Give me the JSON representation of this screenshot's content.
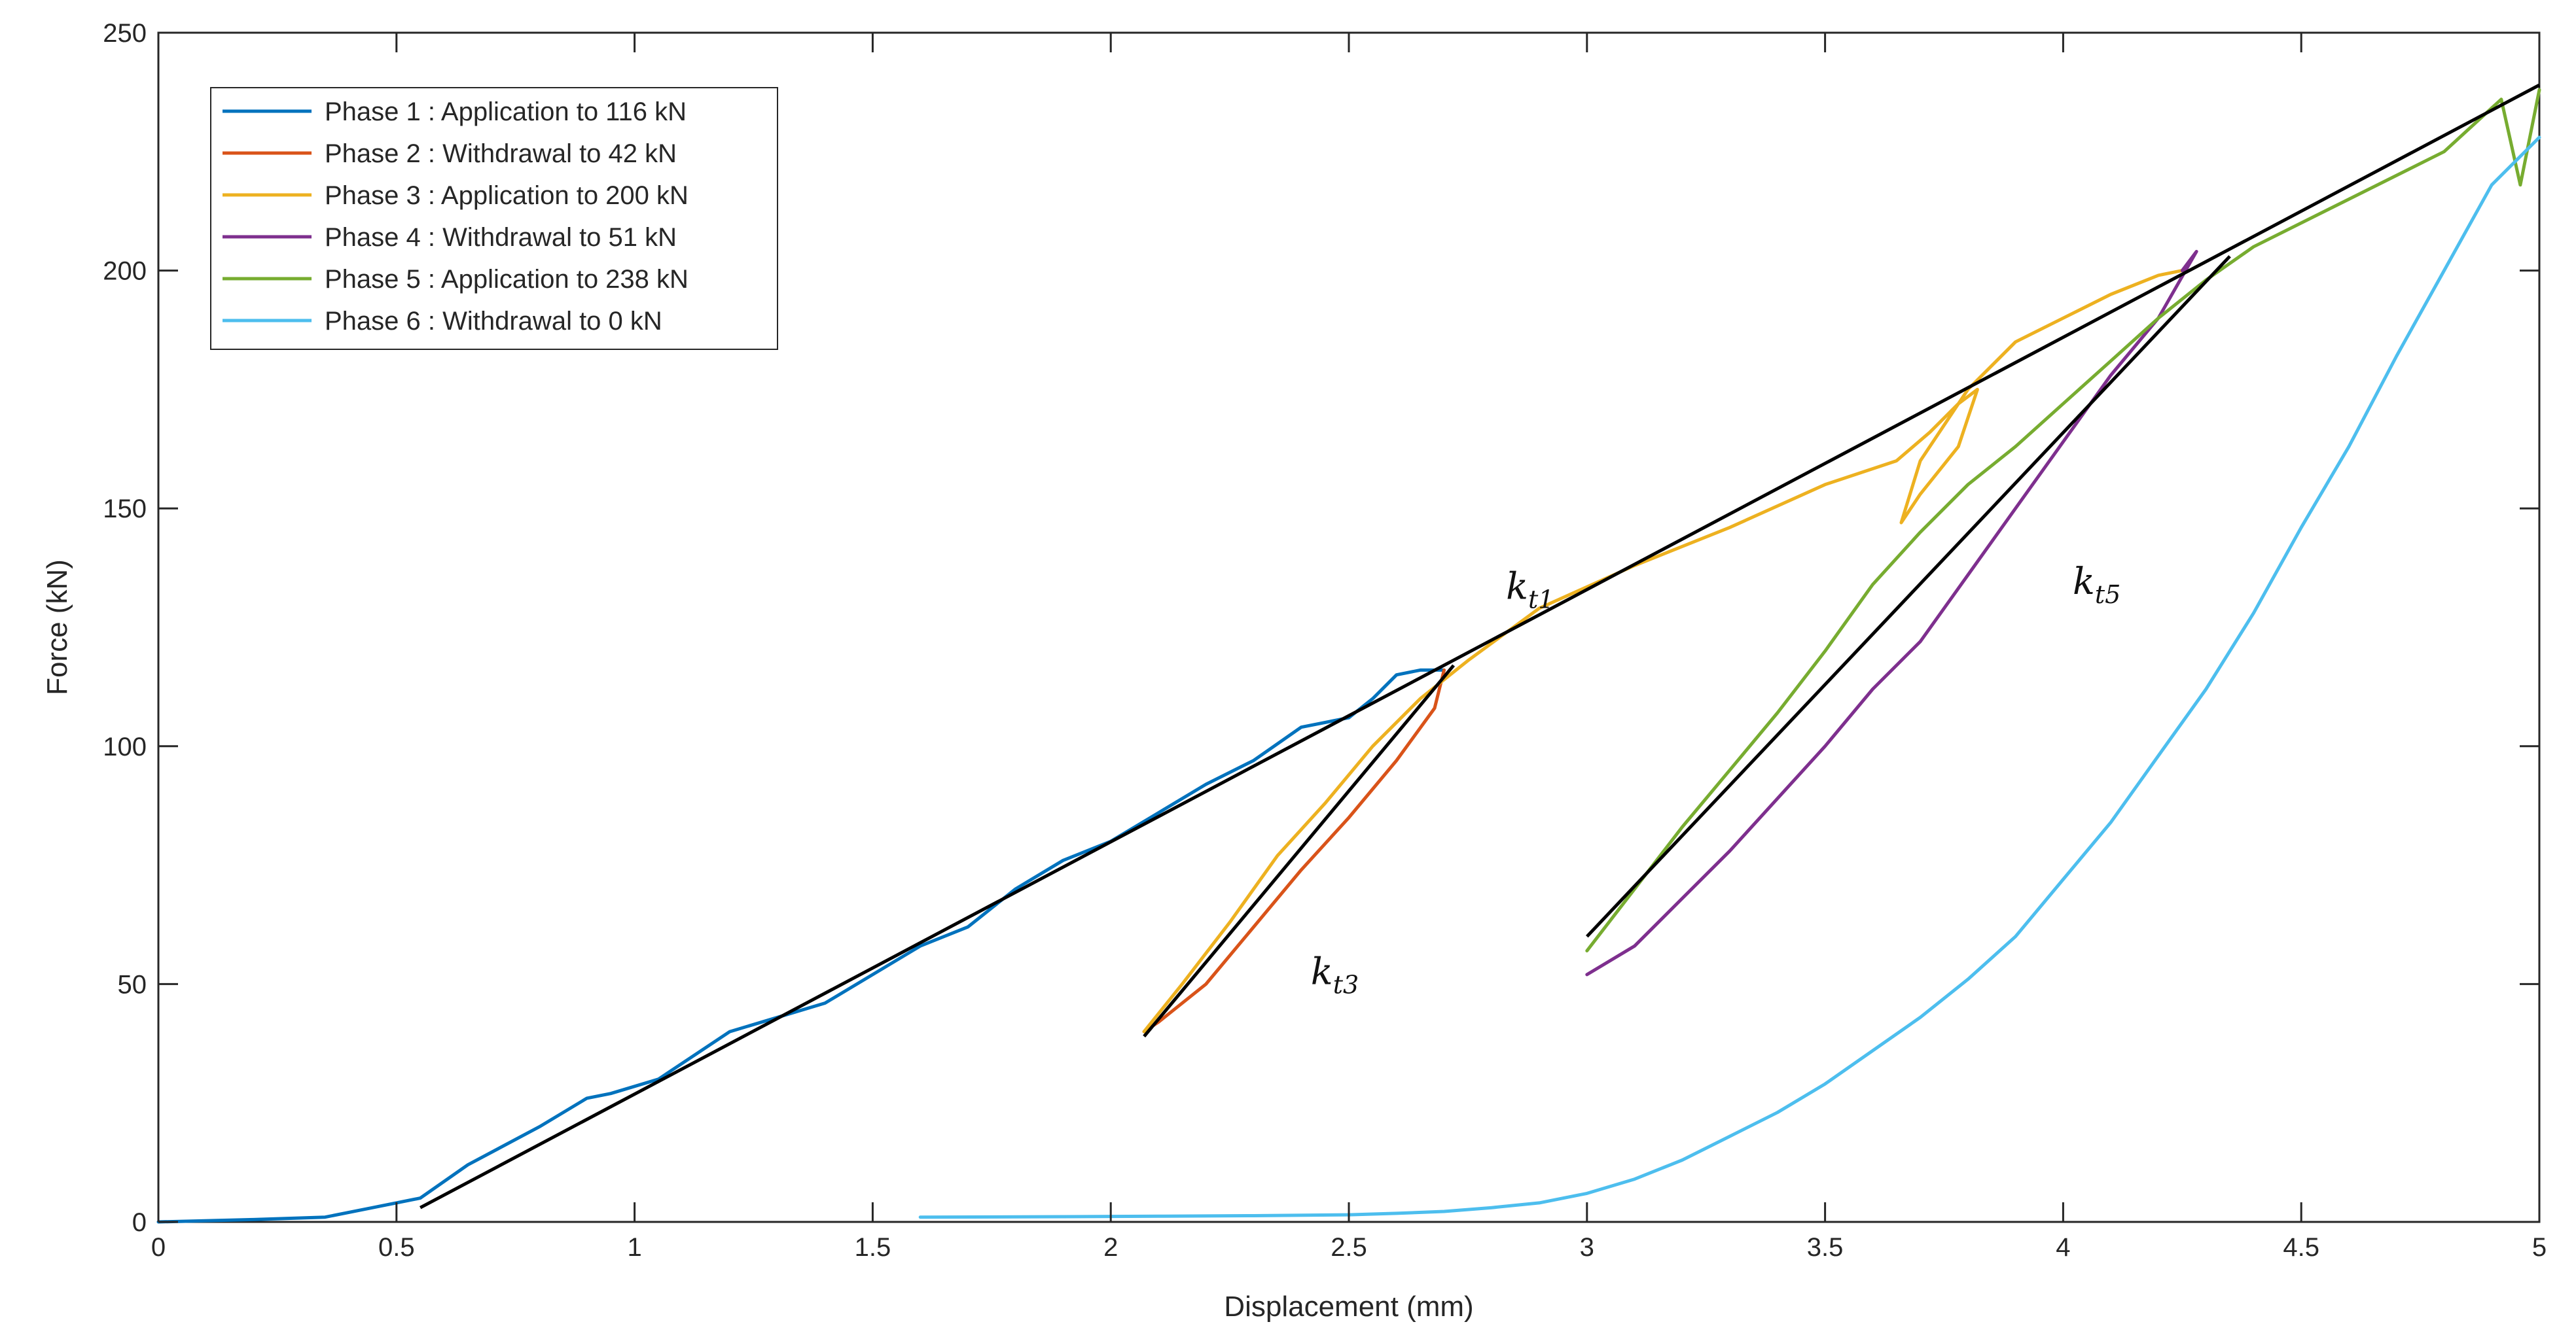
{
  "chart_data": {
    "type": "line",
    "title": "",
    "xlabel": "Displacement (mm)",
    "ylabel": "Force (kN)",
    "xlim": [
      0,
      5
    ],
    "ylim": [
      0,
      250
    ],
    "xticks": [
      0,
      0.5,
      1,
      1.5,
      2,
      2.5,
      3,
      3.5,
      4,
      4.5,
      5
    ],
    "xtick_labels": [
      "0",
      "0.5",
      "1",
      "1.5",
      "2",
      "2.5",
      "3",
      "3.5",
      "4",
      "4.5",
      "5"
    ],
    "yticks": [
      0,
      50,
      100,
      150,
      200,
      250
    ],
    "ytick_labels": [
      "0",
      "50",
      "100",
      "150",
      "200",
      "250"
    ],
    "grid": false,
    "legend_position": "top-left",
    "series": [
      {
        "name": "Phase 1 : Application to 116 kN",
        "color": "#0072BD",
        "x": [
          0,
          0.2,
          0.35,
          0.45,
          0.55,
          0.65,
          0.8,
          0.9,
          0.95,
          1.05,
          1.2,
          1.3,
          1.4,
          1.5,
          1.6,
          1.7,
          1.8,
          1.9,
          2.0,
          2.1,
          2.2,
          2.3,
          2.4,
          2.5,
          2.55,
          2.6,
          2.65,
          2.7
        ],
        "y": [
          0,
          0.5,
          1,
          3,
          5,
          12,
          20,
          26,
          27,
          30,
          40,
          43,
          46,
          52,
          58,
          62,
          70,
          76,
          80,
          86,
          92,
          97,
          104,
          106,
          110,
          115,
          116,
          116
        ]
      },
      {
        "name": "Phase 2 : Withdrawal to 42 kN",
        "color": "#D95319",
        "x": [
          2.7,
          2.68,
          2.6,
          2.5,
          2.4,
          2.3,
          2.2,
          2.1,
          2.07
        ],
        "y": [
          116,
          108,
          97,
          85,
          74,
          62,
          50,
          42,
          40
        ]
      },
      {
        "name": "Phase 3 : Application to 200 kN",
        "color": "#EDB120",
        "x": [
          2.07,
          2.15,
          2.25,
          2.35,
          2.45,
          2.55,
          2.65,
          2.75,
          2.9,
          3.1,
          3.3,
          3.5,
          3.65,
          3.72,
          3.78,
          3.82,
          3.78,
          3.7,
          3.66,
          3.7,
          3.8,
          3.9,
          4.0,
          4.1,
          4.2,
          4.25
        ],
        "y": [
          40,
          50,
          63,
          77,
          88,
          100,
          110,
          118,
          129,
          138,
          146,
          155,
          160,
          166,
          172,
          175,
          163,
          153,
          147,
          160,
          175,
          185,
          190,
          195,
          199,
          200
        ]
      },
      {
        "name": "Phase 4 : Withdrawal to 51 kN",
        "color": "#7E2F8E",
        "x": [
          4.25,
          4.28,
          4.2,
          4.1,
          4.0,
          3.9,
          3.8,
          3.7,
          3.6,
          3.5,
          3.4,
          3.3,
          3.2,
          3.1,
          3.0
        ],
        "y": [
          200,
          204,
          190,
          178,
          164,
          150,
          136,
          122,
          112,
          100,
          89,
          78,
          68,
          58,
          52
        ]
      },
      {
        "name": "Phase 5 : Application to 238 kN",
        "color": "#77AC30",
        "x": [
          3.0,
          3.1,
          3.2,
          3.3,
          3.4,
          3.5,
          3.6,
          3.7,
          3.8,
          3.9,
          4.0,
          4.1,
          4.2,
          4.3,
          4.4,
          4.6,
          4.8,
          4.92,
          4.96,
          5.0
        ],
        "y": [
          57,
          70,
          83,
          95,
          107,
          120,
          134,
          145,
          155,
          163,
          172,
          181,
          190,
          198,
          205,
          215,
          225,
          236,
          218,
          238
        ]
      },
      {
        "name": "Phase 6 : Withdrawal to 0 kN",
        "color": "#4DBEEE",
        "x": [
          5.0,
          4.9,
          4.8,
          4.7,
          4.6,
          4.5,
          4.4,
          4.3,
          4.2,
          4.1,
          4.0,
          3.9,
          3.8,
          3.7,
          3.6,
          3.5,
          3.4,
          3.3,
          3.2,
          3.1,
          3.0,
          2.9,
          2.8,
          2.7,
          2.6,
          2.5,
          2.3,
          2.1,
          1.9,
          1.6
        ],
        "y": [
          228,
          218,
          200,
          182,
          163,
          146,
          128,
          112,
          98,
          84,
          72,
          60,
          51,
          43,
          36,
          29,
          23,
          18,
          13,
          9,
          6,
          4,
          3,
          2.2,
          1.8,
          1.5,
          1.3,
          1.2,
          1.1,
          1.0
        ]
      }
    ],
    "fit_lines": [
      {
        "name": "kt1",
        "color": "#000000",
        "x": [
          0.55,
          5.0
        ],
        "y": [
          3,
          239
        ]
      },
      {
        "name": "kt3",
        "color": "#000000",
        "x": [
          2.07,
          2.72
        ],
        "y": [
          39,
          117
        ]
      },
      {
        "name": "kt5",
        "color": "#000000",
        "x": [
          3.0,
          4.35
        ],
        "y": [
          60,
          203
        ]
      }
    ],
    "annotations": [
      {
        "base": "k",
        "sub": "t1",
        "x": 2.83,
        "y": 131
      },
      {
        "base": "k",
        "sub": "t3",
        "x": 2.42,
        "y": 50
      },
      {
        "base": "k",
        "sub": "t5",
        "x": 4.02,
        "y": 132
      }
    ]
  }
}
